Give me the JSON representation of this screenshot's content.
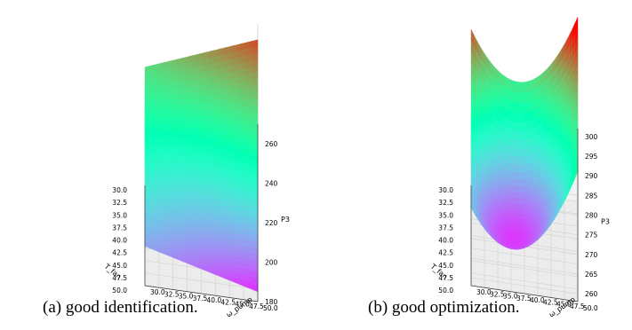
{
  "chart_data": [
    {
      "type": "surface",
      "caption": "(a)  good identification.",
      "xlabel": "T_fan",
      "ylabel": "ω_pump",
      "zlabel": "P3",
      "x_ticks": [
        "30.0",
        "32.5",
        "35.0",
        "37.5",
        "40.0",
        "42.5",
        "45.0",
        "47.5",
        "50.0"
      ],
      "y_ticks": [
        "30.0",
        "32.5",
        "35.0",
        "37.5",
        "40.0",
        "42.5",
        "45.0",
        "47.5",
        "50.0"
      ],
      "z_ticks": [
        "180",
        "200",
        "220",
        "240",
        "260"
      ],
      "xlim": [
        30,
        50
      ],
      "ylim": [
        30,
        50
      ],
      "zlim": [
        180,
        270
      ],
      "colormap": "rainbow",
      "grid": true,
      "corner_values": {
        "x30_y30": 240,
        "x50_y30": 200,
        "x30_y50": 262,
        "x50_y50": 185
      }
    },
    {
      "type": "surface",
      "caption": "(b)  good optimization.",
      "xlabel": "T_fan",
      "ylabel": "ω_pump",
      "zlabel": "P3",
      "x_ticks": [
        "30.0",
        "32.5",
        "35.0",
        "37.5",
        "40.0",
        "42.5",
        "45.0",
        "47.5",
        "50.0"
      ],
      "y_ticks": [
        "30.0",
        "32.5",
        "35.0",
        "37.5",
        "40.0",
        "42.5",
        "45.0",
        "47.5",
        "50.0"
      ],
      "z_ticks": [
        "260",
        "265",
        "270",
        "275",
        "280",
        "285",
        "290",
        "295",
        "300"
      ],
      "xlim": [
        30,
        50
      ],
      "ylim": [
        30,
        50
      ],
      "zlim": [
        258,
        302
      ],
      "colormap": "rainbow",
      "grid": true,
      "minimum": {
        "x": 42,
        "y": 38,
        "z": 261
      }
    }
  ]
}
